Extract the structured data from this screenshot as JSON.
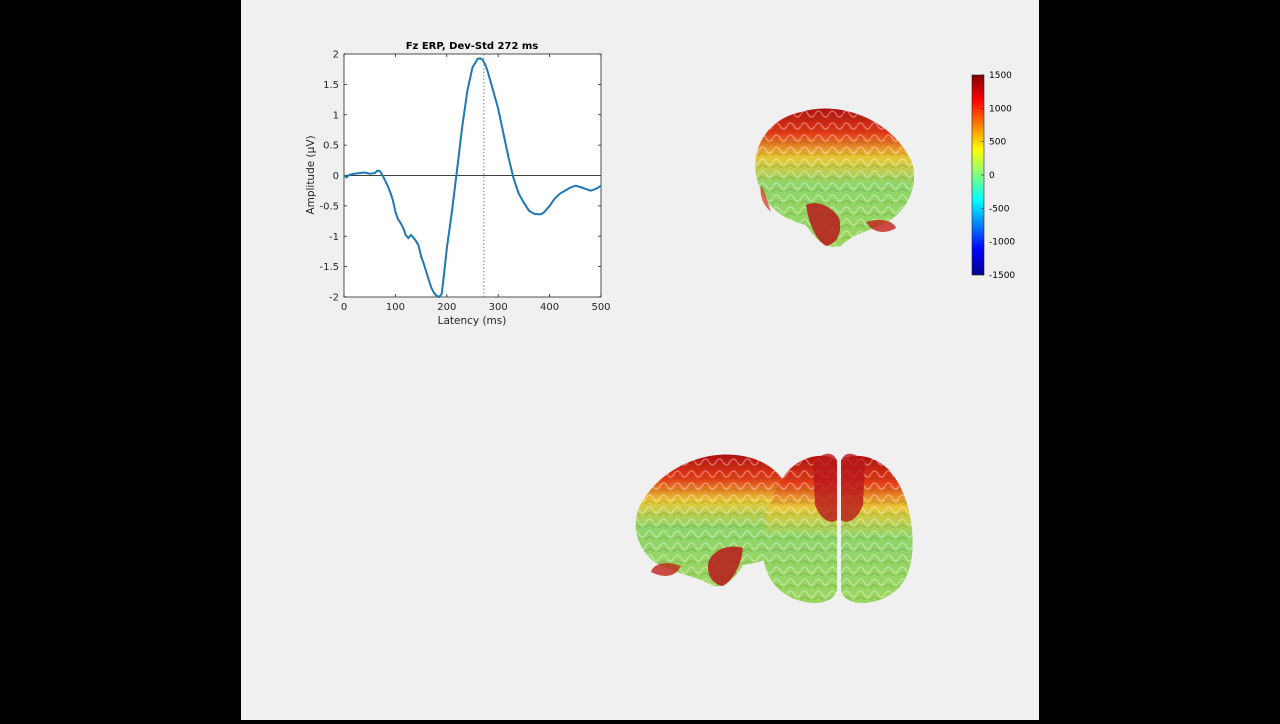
{
  "chart_data": {
    "type": "line",
    "title": "Fz ERP, Dev-Std 272 ms",
    "xlabel": "Latency (ms)",
    "ylabel": "Amplitude (μV)",
    "xlim": [
      0,
      500
    ],
    "ylim": [
      -2,
      2
    ],
    "xticks": [
      0,
      100,
      200,
      300,
      400,
      500
    ],
    "yticks": [
      -2,
      -1.5,
      -1,
      -0.5,
      0,
      0.5,
      1,
      1.5,
      2
    ],
    "marker_latency_ms": 272,
    "series": [
      {
        "color": "#1f77b4",
        "x": [
          0,
          5,
          10,
          20,
          30,
          40,
          50,
          60,
          65,
          70,
          75,
          80,
          85,
          90,
          95,
          100,
          105,
          110,
          115,
          120,
          125,
          130,
          135,
          140,
          145,
          150,
          155,
          160,
          165,
          170,
          175,
          180,
          185,
          190,
          195,
          200,
          210,
          220,
          230,
          240,
          250,
          260,
          265,
          270,
          275,
          280,
          290,
          300,
          310,
          320,
          330,
          340,
          350,
          360,
          370,
          380,
          385,
          390,
          400,
          410,
          420,
          430,
          440,
          450,
          460,
          470,
          480,
          490,
          500
        ],
        "y": [
          0.0,
          -0.03,
          0.01,
          0.03,
          0.04,
          0.05,
          0.03,
          0.04,
          0.08,
          0.07,
          0.0,
          -0.08,
          -0.17,
          -0.28,
          -0.4,
          -0.6,
          -0.72,
          -0.78,
          -0.86,
          -0.98,
          -1.03,
          -0.98,
          -1.02,
          -1.08,
          -1.15,
          -1.33,
          -1.45,
          -1.58,
          -1.72,
          -1.85,
          -1.93,
          -1.98,
          -2.03,
          -1.95,
          -1.6,
          -1.2,
          -0.6,
          0.1,
          0.8,
          1.4,
          1.78,
          1.92,
          1.93,
          1.9,
          1.82,
          1.7,
          1.4,
          1.1,
          0.7,
          0.3,
          -0.05,
          -0.3,
          -0.45,
          -0.58,
          -0.63,
          -0.64,
          -0.63,
          -0.6,
          -0.5,
          -0.38,
          -0.3,
          -0.25,
          -0.2,
          -0.17,
          -0.19,
          -0.22,
          -0.25,
          -0.22,
          -0.17
        ]
      }
    ],
    "colorbar": {
      "ticks": [
        "1500",
        "1000",
        "500",
        "0",
        "-500",
        "-1000",
        "-1500"
      ],
      "colormap": "jet"
    }
  },
  "brain_views": [
    {
      "view": "left-lateral"
    },
    {
      "view": "right-lateral"
    },
    {
      "view": "frontal"
    }
  ]
}
